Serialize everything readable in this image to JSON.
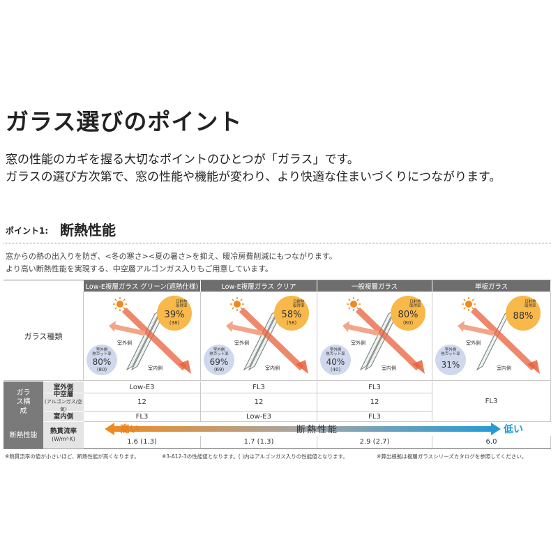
{
  "header": {
    "title": "ガラス選びのポイント",
    "lines": [
      "窓の性能のカギを握る大切なポイントのひとつが「ガラス」です。",
      "ガラスの選び方次第で、窓の性能や機能が変わり、より快適な住まいづくりにつながります。"
    ]
  },
  "section": {
    "label": "ポイント1:",
    "title": "断熱性能",
    "lines": [
      "窓からの熱の出入りを防ぎ、<冬の寒さ><夏の暑さ>を抑え、暖冷房費削減にもつながります。",
      "より高い断熱性能を実現する、中空層アルゴンガス入りもご用意しています。"
    ]
  },
  "table": {
    "columns": [
      "Low-E複層ガラス グリーン(遮熱仕様)",
      "Low-E複層ガラス クリア",
      "一般複層ガラス",
      "単板ガラス"
    ],
    "type_label": "ガラス種類",
    "figure_labels": {
      "outdoor": "室外側",
      "indoor": "室内側",
      "solar": [
        "日射熱",
        "取得率"
      ],
      "cut": [
        "室外側",
        "熱カット率"
      ]
    },
    "figures": [
      {
        "solar": "39%",
        "solar_sub": "(38)",
        "cut": "80%",
        "cut_sub": "(80)"
      },
      {
        "solar": "58%",
        "solar_sub": "(58)",
        "cut": "69%",
        "cut_sub": "(69)"
      },
      {
        "solar": "80%",
        "solar_sub": "(80)",
        "cut": "40%",
        "cut_sub": "(40)"
      },
      {
        "solar": "88%",
        "cut": "31%"
      }
    ],
    "group_label": "ガラス構成",
    "rows": [
      {
        "label": "室外側",
        "cells": [
          "Low-E3",
          "FL3",
          "FL3"
        ]
      },
      {
        "label": "中空層",
        "sub": "(アルゴンガス/空気)",
        "cells": [
          "12",
          "12",
          "12"
        ]
      },
      {
        "label": "室内側",
        "cells": [
          "FL3",
          "Low-E3",
          "FL3"
        ]
      }
    ],
    "single_cell": "FL3",
    "performance": {
      "label": "断熱性能",
      "metric": "熱貫流率",
      "unit": "(W/m²·K)",
      "high": "高い",
      "axis": "断熱性能",
      "low": "低い",
      "values": [
        "1.6 (1.3)",
        "1.7 (1.3)",
        "2.9 (2.7)",
        "6.0"
      ]
    }
  },
  "footnotes": [
    "※熱貫流率の値が小さいほど、断熱性能が高くなります。",
    "※3-A12-3の性能値となります。( )内はアルゴンガス入りの性能値となります。",
    "※算出根拠は複層ガラスシリーズカタログを参照してください。"
  ]
}
